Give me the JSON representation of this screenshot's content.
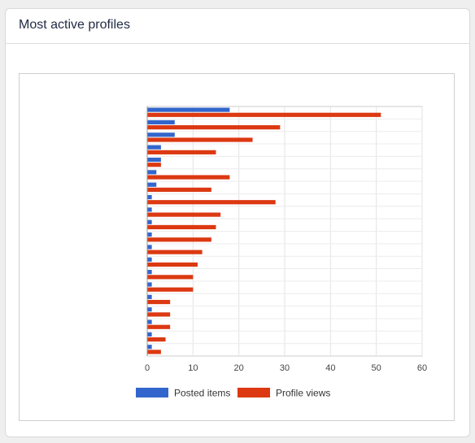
{
  "card": {
    "title": "Most active profiles"
  },
  "chart_data": {
    "type": "bar",
    "orientation": "horizontal",
    "categories": [
      "",
      "",
      "",
      "",
      "",
      "",
      "",
      "",
      "",
      "",
      "",
      "",
      "",
      "",
      "",
      "",
      "",
      "",
      "",
      ""
    ],
    "series": [
      {
        "name": "Posted items",
        "color": "#3366cc",
        "values": [
          18,
          6,
          6,
          3,
          3,
          2,
          2,
          1,
          1,
          1,
          1,
          1,
          1,
          1,
          1,
          1,
          1,
          1,
          1,
          1
        ]
      },
      {
        "name": "Profile views",
        "color": "#dc3912",
        "values": [
          51,
          29,
          23,
          15,
          3,
          18,
          14,
          28,
          16,
          15,
          14,
          12,
          11,
          10,
          10,
          5,
          5,
          5,
          4,
          3
        ]
      }
    ],
    "xlim": [
      0,
      60
    ],
    "xticks": [
      0,
      10,
      20,
      30,
      40,
      50,
      60
    ],
    "grid": true,
    "legend": "bottom"
  }
}
